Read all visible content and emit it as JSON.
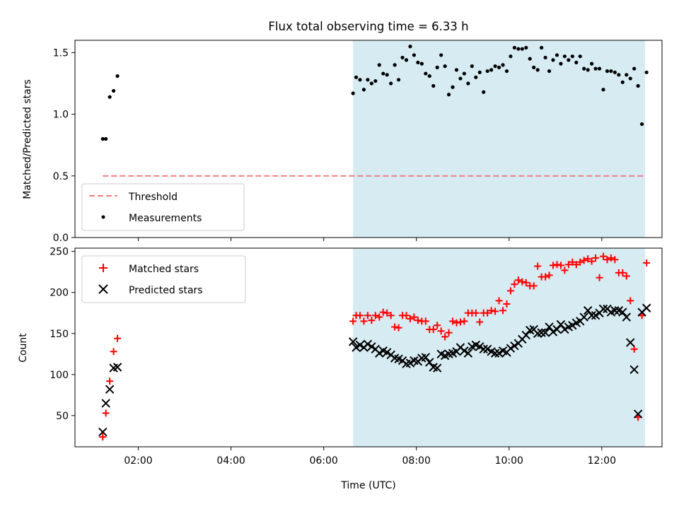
{
  "title": "Flux total observing time = 6.33 h",
  "chart_data": [
    {
      "type": "scatter",
      "ylabel": "Matched/Predicted stars",
      "xlabel": "",
      "xlim": [
        "00:38",
        "13:18"
      ],
      "ylim": [
        0,
        1.6
      ],
      "yticks": [
        0.0,
        0.5,
        1.0,
        1.5
      ],
      "ytick_labels": [
        "0.0",
        "0.5",
        "1.0",
        "1.5"
      ],
      "xticks": [
        "02:00",
        "04:00",
        "06:00",
        "08:00",
        "10:00",
        "12:00"
      ],
      "grid": false,
      "legend_position": "lower-left",
      "shaded_span": {
        "start": "06:38",
        "end": "12:56",
        "color": "#add8e6"
      },
      "threshold": {
        "name": "Threshold",
        "value": 0.5,
        "start": "01:14",
        "end": "12:56",
        "color": "#f08080",
        "style": "dashed"
      },
      "series": [
        {
          "name": "Measurements",
          "color": "#000000",
          "marker": "dot",
          "x": [
            "01:14",
            "01:18",
            "01:23",
            "01:28",
            "01:33",
            "06:38",
            "06:42",
            "06:47",
            "06:52",
            "06:57",
            "07:02",
            "07:07",
            "07:12",
            "07:17",
            "07:22",
            "07:27",
            "07:32",
            "07:37",
            "07:42",
            "07:47",
            "07:52",
            "07:57",
            "08:02",
            "08:07",
            "08:12",
            "08:17",
            "08:22",
            "08:27",
            "08:32",
            "08:37",
            "08:42",
            "08:47",
            "08:52",
            "08:57",
            "09:02",
            "09:07",
            "09:12",
            "09:17",
            "09:22",
            "09:27",
            "09:32",
            "09:37",
            "09:42",
            "09:47",
            "09:52",
            "09:57",
            "10:02",
            "10:07",
            "10:12",
            "10:17",
            "10:22",
            "10:27",
            "10:32",
            "10:37",
            "10:42",
            "10:47",
            "10:52",
            "10:57",
            "11:02",
            "11:07",
            "11:12",
            "11:17",
            "11:22",
            "11:27",
            "11:32",
            "11:37",
            "11:42",
            "11:47",
            "11:52",
            "11:57",
            "12:02",
            "12:07",
            "12:12",
            "12:17",
            "12:22",
            "12:27",
            "12:32",
            "12:37",
            "12:42",
            "12:47",
            "12:52",
            "12:58"
          ],
          "y": [
            0.8,
            0.8,
            1.14,
            1.19,
            1.31,
            1.17,
            1.3,
            1.28,
            1.2,
            1.28,
            1.25,
            1.27,
            1.4,
            1.33,
            1.32,
            1.25,
            1.4,
            1.28,
            1.46,
            1.44,
            1.55,
            1.48,
            1.42,
            1.41,
            1.33,
            1.31,
            1.23,
            1.38,
            1.48,
            1.39,
            1.16,
            1.22,
            1.36,
            1.29,
            1.33,
            1.25,
            1.39,
            1.3,
            1.34,
            1.18,
            1.35,
            1.36,
            1.39,
            1.38,
            1.4,
            1.35,
            1.47,
            1.54,
            1.53,
            1.53,
            1.54,
            1.45,
            1.38,
            1.36,
            1.54,
            1.46,
            1.35,
            1.44,
            1.48,
            1.41,
            1.47,
            1.44,
            1.47,
            1.42,
            1.47,
            1.37,
            1.36,
            1.41,
            1.37,
            1.37,
            1.2,
            1.35,
            1.35,
            1.34,
            1.32,
            1.26,
            1.32,
            1.29,
            1.37,
            1.23,
            0.92,
            1.34
          ]
        }
      ]
    },
    {
      "type": "scatter",
      "ylabel": "Count",
      "xlabel": "Time (UTC)",
      "xlim": [
        "00:38",
        "13:18"
      ],
      "ylim": [
        12,
        254
      ],
      "yticks": [
        50,
        100,
        150,
        200,
        250
      ],
      "ytick_labels": [
        "50",
        "100",
        "150",
        "200",
        "250"
      ],
      "xticks": [
        "02:00",
        "04:00",
        "06:00",
        "08:00",
        "10:00",
        "12:00"
      ],
      "grid": false,
      "legend_position": "upper-left",
      "shaded_span": {
        "start": "06:38",
        "end": "12:56",
        "color": "#add8e6"
      },
      "series": [
        {
          "name": "Matched stars",
          "color": "#ff0000",
          "marker": "plus",
          "x": [
            "01:14",
            "01:18",
            "01:23",
            "01:28",
            "01:33",
            "06:38",
            "06:42",
            "06:47",
            "06:52",
            "06:57",
            "07:02",
            "07:07",
            "07:12",
            "07:17",
            "07:22",
            "07:27",
            "07:32",
            "07:37",
            "07:42",
            "07:47",
            "07:52",
            "07:57",
            "08:02",
            "08:07",
            "08:12",
            "08:17",
            "08:22",
            "08:27",
            "08:32",
            "08:37",
            "08:42",
            "08:47",
            "08:52",
            "08:57",
            "09:02",
            "09:07",
            "09:12",
            "09:17",
            "09:22",
            "09:27",
            "09:32",
            "09:37",
            "09:42",
            "09:47",
            "09:52",
            "09:57",
            "10:02",
            "10:07",
            "10:12",
            "10:17",
            "10:22",
            "10:27",
            "10:32",
            "10:37",
            "10:42",
            "10:47",
            "10:52",
            "10:57",
            "11:02",
            "11:07",
            "11:12",
            "11:17",
            "11:22",
            "11:27",
            "11:32",
            "11:37",
            "11:42",
            "11:47",
            "11:52",
            "11:57",
            "12:02",
            "12:07",
            "12:12",
            "12:17",
            "12:22",
            "12:27",
            "12:32",
            "12:37",
            "12:42",
            "12:47",
            "12:52",
            "12:58"
          ],
          "y": [
            24,
            53,
            92,
            128,
            144,
            165,
            172,
            172,
            165,
            172,
            166,
            172,
            170,
            176,
            175,
            172,
            158,
            157,
            172,
            172,
            168,
            170,
            166,
            165,
            165,
            155,
            155,
            160,
            153,
            146,
            151,
            165,
            163,
            164,
            165,
            175,
            175,
            175,
            164,
            175,
            175,
            178,
            177,
            190,
            178,
            186,
            202,
            210,
            215,
            213,
            212,
            208,
            208,
            232,
            219,
            219,
            221,
            233,
            234,
            233,
            227,
            234,
            237,
            234,
            237,
            239,
            241,
            238,
            242,
            218,
            244,
            240,
            242,
            240,
            224,
            224,
            220,
            190,
            131,
            48,
            172,
            236
          ]
        },
        {
          "name": "Predicted stars",
          "color": "#000000",
          "marker": "x",
          "x": [
            "01:14",
            "01:18",
            "01:23",
            "01:28",
            "01:33",
            "06:38",
            "06:42",
            "06:47",
            "06:52",
            "06:57",
            "07:02",
            "07:07",
            "07:12",
            "07:17",
            "07:22",
            "07:27",
            "07:32",
            "07:37",
            "07:42",
            "07:47",
            "07:52",
            "07:57",
            "08:02",
            "08:07",
            "08:12",
            "08:17",
            "08:22",
            "08:27",
            "08:32",
            "08:37",
            "08:42",
            "08:47",
            "08:52",
            "08:57",
            "09:02",
            "09:07",
            "09:12",
            "09:17",
            "09:22",
            "09:27",
            "09:32",
            "09:37",
            "09:42",
            "09:47",
            "09:52",
            "09:57",
            "10:02",
            "10:07",
            "10:12",
            "10:17",
            "10:22",
            "10:27",
            "10:32",
            "10:37",
            "10:42",
            "10:47",
            "10:52",
            "10:57",
            "11:02",
            "11:07",
            "11:12",
            "11:17",
            "11:22",
            "11:27",
            "11:32",
            "11:37",
            "11:42",
            "11:47",
            "11:52",
            "11:57",
            "12:02",
            "12:07",
            "12:12",
            "12:17",
            "12:22",
            "12:27",
            "12:32",
            "12:37",
            "12:42",
            "12:47",
            "12:52",
            "12:58"
          ],
          "y": [
            30,
            65,
            82,
            108,
            109,
            140,
            133,
            136,
            133,
            137,
            134,
            131,
            126,
            129,
            127,
            124,
            120,
            119,
            117,
            113,
            114,
            117,
            116,
            120,
            121,
            115,
            109,
            108,
            125,
            123,
            125,
            126,
            128,
            133,
            129,
            126,
            134,
            136,
            134,
            131,
            131,
            128,
            126,
            126,
            129,
            127,
            132,
            135,
            138,
            143,
            148,
            154,
            155,
            150,
            151,
            151,
            158,
            152,
            155,
            161,
            155,
            158,
            160,
            163,
            165,
            170,
            178,
            172,
            172,
            175,
            180,
            180,
            176,
            178,
            178,
            176,
            170,
            139,
            106,
            52,
            176,
            181
          ]
        }
      ]
    }
  ]
}
